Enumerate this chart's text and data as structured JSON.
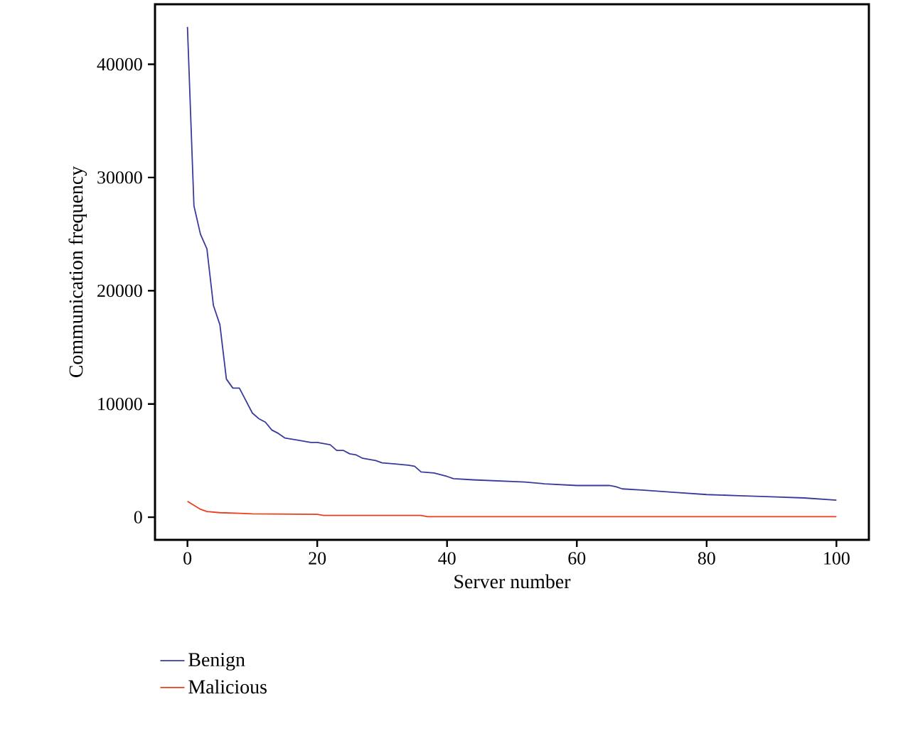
{
  "chart_data": {
    "type": "line",
    "xlabel": "Server number",
    "ylabel": "Communication frequency",
    "xlim": [
      -5,
      105
    ],
    "ylim": [
      -2000,
      45300
    ],
    "xticks": [
      0,
      20,
      40,
      60,
      80,
      100
    ],
    "yticks": [
      0,
      10000,
      20000,
      30000,
      40000
    ],
    "grid": false,
    "legend": "bottom left",
    "marker": "none",
    "line_style": "solid",
    "series": [
      {
        "name": "Benign",
        "color": "#3a3a9e",
        "x": [
          0,
          1,
          2,
          3,
          4,
          5,
          6,
          7,
          8,
          9,
          10,
          11,
          12,
          13,
          14,
          15,
          16,
          17,
          18,
          19,
          20,
          21,
          22,
          23,
          24,
          25,
          26,
          27,
          28,
          29,
          30,
          32,
          34,
          35,
          36,
          38,
          40,
          41,
          44,
          48,
          52,
          55,
          60,
          65,
          66,
          67,
          70,
          75,
          80,
          85,
          90,
          95,
          100
        ],
        "values": [
          43300,
          27500,
          25000,
          23700,
          18700,
          17000,
          12200,
          11400,
          11400,
          10300,
          9200,
          8700,
          8400,
          7700,
          7400,
          7000,
          6900,
          6800,
          6700,
          6600,
          6600,
          6500,
          6400,
          5900,
          5900,
          5600,
          5500,
          5200,
          5100,
          5000,
          4800,
          4700,
          4600,
          4500,
          4000,
          3900,
          3600,
          3400,
          3300,
          3200,
          3100,
          2950,
          2800,
          2800,
          2700,
          2500,
          2400,
          2200,
          2000,
          1900,
          1800,
          1700,
          1500
        ]
      },
      {
        "name": "Malicious",
        "color": "#f03c1e",
        "x": [
          0,
          2,
          3,
          5,
          8,
          10,
          20,
          21,
          36,
          37,
          100
        ],
        "values": [
          1400,
          700,
          500,
          400,
          350,
          300,
          250,
          150,
          150,
          50,
          50
        ]
      }
    ]
  }
}
